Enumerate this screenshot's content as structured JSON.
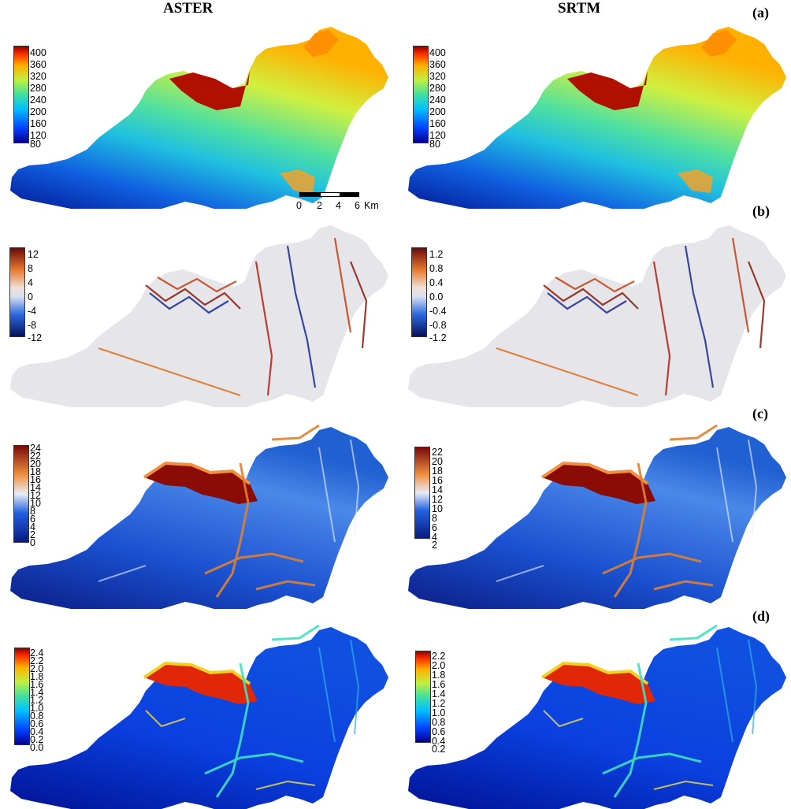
{
  "columns": [
    {
      "title": "ASTER"
    },
    {
      "title": "SRTM"
    }
  ],
  "rows": [
    {
      "label": "(a)",
      "colormap": "jet",
      "cbars": [
        [
          "400",
          "360",
          "320",
          "280",
          "240",
          "200",
          "160",
          "120",
          "80"
        ],
        [
          "400",
          "360",
          "320",
          "280",
          "240",
          "200",
          "160",
          "120",
          "80"
        ]
      ]
    },
    {
      "label": "(b)",
      "colormap": "diverging",
      "cbars": [
        [
          "12",
          "8",
          "4",
          "0",
          "-4",
          "-8",
          "-12"
        ],
        [
          "1.2",
          "0.8",
          "0.4",
          "0.0",
          "-0.4",
          "-0.8",
          "-1.2"
        ]
      ]
    },
    {
      "label": "(c)",
      "colormap": "blue-white-red",
      "cbars": [
        [
          "24",
          "22",
          "20",
          "18",
          "16",
          "14",
          "12",
          "10",
          "8",
          "6",
          "4",
          "2",
          "0"
        ],
        [
          "22",
          "20",
          "18",
          "16",
          "14",
          "12",
          "10",
          "8",
          "6",
          "4",
          "2"
        ]
      ]
    },
    {
      "label": "(d)",
      "colormap": "jet",
      "cbars": [
        [
          "2.4",
          "2.2",
          "2.0",
          "1.8",
          "1.6",
          "1.4",
          "1.2",
          "1.0",
          "0.8",
          "0.6",
          "0.4",
          "0.2",
          "0.0"
        ],
        [
          "2.2",
          "2.0",
          "1.8",
          "1.6",
          "1.4",
          "1.2",
          "1.0",
          "0.8",
          "0.6",
          "0.4",
          "0.2"
        ]
      ]
    }
  ],
  "scale_bar": {
    "ticks": [
      "0",
      "2",
      "4",
      "6"
    ],
    "unit": "Km"
  }
}
